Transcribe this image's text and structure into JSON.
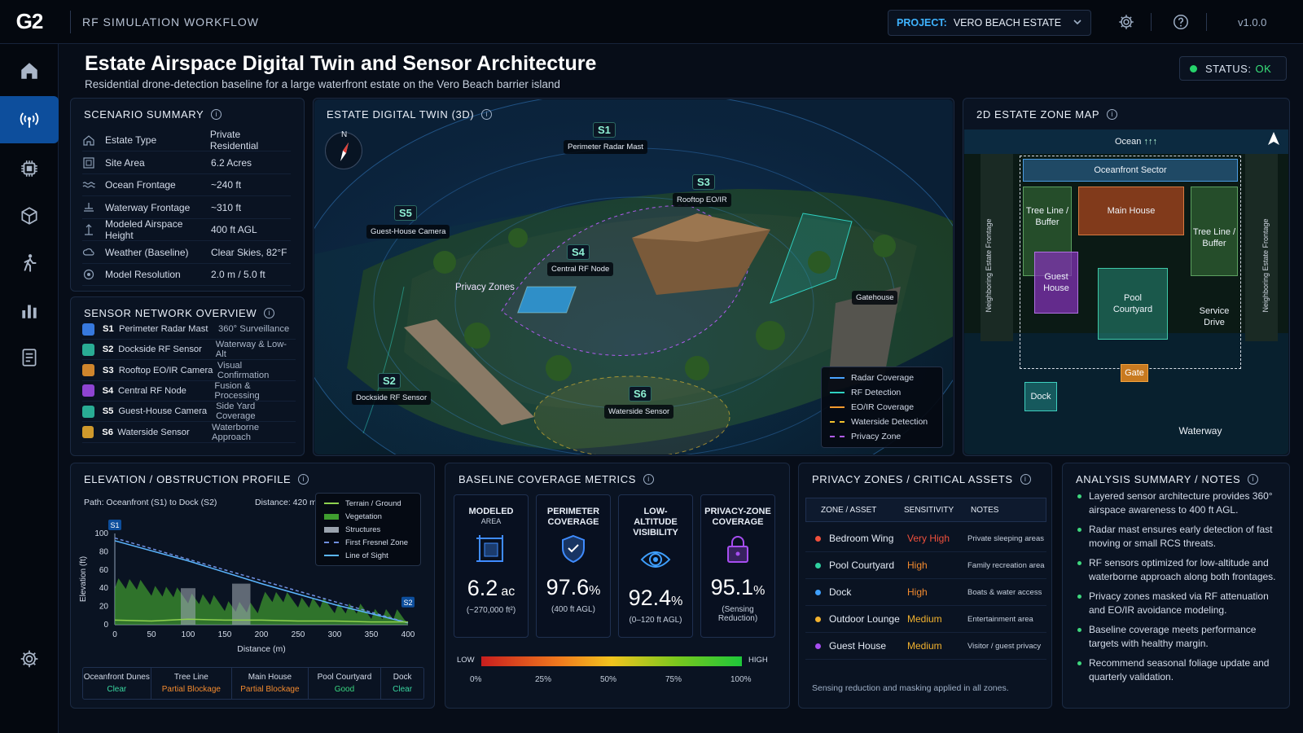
{
  "topbar": {
    "logo": "G2",
    "app_title": "RF SIMULATION WORKFLOW",
    "project_label": "PROJECT:",
    "project_value": "VERO BEACH ESTATE",
    "version": "v1.0.0"
  },
  "header": {
    "title": "Estate Airspace Digital Twin and Sensor Architecture",
    "subtitle": "Residential drone-detection baseline for a large waterfront estate on the Vero Beach barrier island",
    "status_label": "STATUS:",
    "status_value": "OK"
  },
  "scenario": {
    "title": "SCENARIO SUMMARY",
    "rows": [
      {
        "icon": "home-icon",
        "k": "Estate Type",
        "v": "Private Residential"
      },
      {
        "icon": "area-icon",
        "k": "Site Area",
        "v": "6.2 Acres"
      },
      {
        "icon": "waves-icon",
        "k": "Ocean Frontage",
        "v": "~240 ft"
      },
      {
        "icon": "waterway-icon",
        "k": "Waterway Frontage",
        "v": "~310 ft"
      },
      {
        "icon": "height-icon",
        "k": "Modeled Airspace Height",
        "v": "400 ft AGL"
      },
      {
        "icon": "weather-icon",
        "k": "Weather (Baseline)",
        "v": "Clear Skies, 82°F"
      },
      {
        "icon": "resolution-icon",
        "k": "Model Resolution",
        "v": "2.0 m / 5.0 ft"
      }
    ]
  },
  "sensors": {
    "title": "SENSOR NETWORK OVERVIEW",
    "rows": [
      {
        "id": "S1",
        "name": "Perimeter Radar Mast",
        "desc": "360° Surveillance",
        "color": "#3f8cff"
      },
      {
        "id": "S2",
        "name": "Dockside RF Sensor",
        "desc": "Waterway & Low-Alt",
        "color": "#2fc8a8"
      },
      {
        "id": "S3",
        "name": "Rooftop EO/IR Camera",
        "desc": "Visual Confirmation",
        "color": "#f29a2e"
      },
      {
        "id": "S4",
        "name": "Central RF Node",
        "desc": "Fusion & Processing",
        "color": "#a64df0"
      },
      {
        "id": "S5",
        "name": "Guest-House Camera",
        "desc": "Side Yard Coverage",
        "color": "#2fc8a8"
      },
      {
        "id": "S6",
        "name": "Waterside Sensor",
        "desc": "Waterborne Approach",
        "color": "#f2b22e"
      }
    ]
  },
  "twin": {
    "title": "ESTATE DIGITAL TWIN (3D)",
    "compass": "N",
    "labels": [
      {
        "id": "S1",
        "tag": "Perimeter Radar Mast"
      },
      {
        "id": "S3",
        "tag": "Rooftop EO/IR"
      },
      {
        "id": "S5",
        "tag": "Guest-House Camera"
      },
      {
        "id": "S4",
        "tag": "Central RF Node"
      },
      {
        "id": "S2",
        "tag": "Dockside RF Sensor"
      },
      {
        "id": "S6",
        "tag": "Waterside Sensor"
      }
    ],
    "privacy_label": "Privacy Zones",
    "gatehouse": "Gatehouse",
    "legend": [
      {
        "name": "Radar Coverage",
        "color": "#4aa3ff",
        "style": "solid"
      },
      {
        "name": "RF Detection",
        "color": "#2fd0c0",
        "style": "solid"
      },
      {
        "name": "EO/IR Coverage",
        "color": "#f29a2e",
        "style": "solid"
      },
      {
        "name": "Waterside Detection",
        "color": "#f2c22e",
        "style": "dashed"
      },
      {
        "name": "Privacy Zone",
        "color": "#b05cf0",
        "style": "dashed"
      }
    ]
  },
  "map": {
    "title": "2D ESTATE ZONE MAP",
    "north": "N",
    "ocean": "Ocean",
    "oceanfront": "Oceanfront Sector",
    "main_house": "Main House",
    "tree_left": "Tree Line / Buffer",
    "tree_right": "Tree Line / Buffer",
    "guest": "Guest House",
    "pool": "Pool Courtyard",
    "service": "Service Drive",
    "gate": "Gate",
    "dock": "Dock",
    "waterway": "Waterway",
    "neighbor_left": "Neighboring Estate Frontage",
    "neighbor_right": "Neighboring Estate Frontage"
  },
  "profile": {
    "title": "ELEVATION / OBSTRUCTION PROFILE",
    "path": "Path: Oceanfront (S1) to Dock (S2)",
    "distance": "Distance: 420 m",
    "ylabel": "Elevation (ft)",
    "xlabel": "Distance (m)",
    "s1": "S1",
    "s2": "S2",
    "xticks": [
      "0",
      "50",
      "100",
      "150",
      "200",
      "250",
      "300",
      "350",
      "400"
    ],
    "yticks": [
      "0",
      "20",
      "40",
      "60",
      "80",
      "100"
    ],
    "legend": [
      {
        "name": "Terrain / Ground",
        "color": "#8fd14f",
        "type": "line"
      },
      {
        "name": "Vegetation",
        "color": "#3f9d2f",
        "type": "fill"
      },
      {
        "name": "Structures",
        "color": "#9aa3ae",
        "type": "fill"
      },
      {
        "name": "First Fresnel Zone",
        "color": "#6f8fe0",
        "type": "dash"
      },
      {
        "name": "Line of Sight",
        "color": "#5bb6ff",
        "type": "line"
      }
    ],
    "segments": [
      {
        "name": "Oceanfront Dunes",
        "state": "Clear",
        "color": "#39d6a0"
      },
      {
        "name": "Tree Line",
        "state": "Partial Blockage",
        "color": "#f28a2e"
      },
      {
        "name": "Main House",
        "state": "Partial Blockage",
        "color": "#f28a2e"
      },
      {
        "name": "Pool Courtyard",
        "state": "Good",
        "color": "#39d680"
      },
      {
        "name": "Dock",
        "state": "Clear",
        "color": "#39d6a0"
      }
    ]
  },
  "chart_data": {
    "type": "line",
    "title": "ELEVATION / OBSTRUCTION PROFILE",
    "xlabel": "Distance (m)",
    "ylabel": "Elevation (ft)",
    "xlim": [
      0,
      400
    ],
    "ylim": [
      0,
      100
    ],
    "series": [
      {
        "name": "Line of Sight",
        "x": [
          0,
          100,
          200,
          300,
          400
        ],
        "y": [
          92,
          70,
          45,
          22,
          2
        ]
      },
      {
        "name": "First Fresnel Zone",
        "x": [
          0,
          400
        ],
        "y": [
          95,
          2
        ]
      },
      {
        "name": "Terrain / Ground",
        "x": [
          0,
          50,
          100,
          150,
          200,
          250,
          300,
          350,
          400
        ],
        "y": [
          5,
          4,
          6,
          5,
          5,
          4,
          4,
          3,
          3
        ]
      }
    ]
  },
  "metrics": {
    "title": "BASELINE COVERAGE METRICS",
    "items": [
      {
        "t": "MODELED",
        "s": "AREA",
        "v": "6.2",
        "u": "ac",
        "n": "(~270,000 ft²)",
        "icon": "area-grid-icon"
      },
      {
        "t": "PERIMETER COVERAGE",
        "s": "",
        "v": "97.6",
        "u": "%",
        "n": "(400 ft AGL)",
        "icon": "shield-icon"
      },
      {
        "t": "LOW-ALTITUDE VISIBILITY",
        "s": "",
        "v": "92.4",
        "u": "%",
        "n": "(0–120 ft AGL)",
        "icon": "eye-icon"
      },
      {
        "t": "PRIVACY-ZONE COVERAGE",
        "s": "",
        "v": "95.1",
        "u": "%",
        "n": "(Sensing Reduction)",
        "icon": "lock-icon"
      }
    ],
    "scale_low": "LOW",
    "scale_high": "HIGH",
    "scale_ticks": [
      "0%",
      "25%",
      "50%",
      "75%",
      "100%"
    ]
  },
  "privacy": {
    "title": "PRIVACY ZONES / CRITICAL ASSETS",
    "cols": [
      "ZONE / ASSET",
      "SENSITIVITY",
      "NOTES"
    ],
    "rows": [
      {
        "dot": "#f0503c",
        "zone": "Bedroom Wing",
        "sens": "Very High",
        "sens_color": "#f0503c",
        "note": "Private sleeping areas"
      },
      {
        "dot": "#2fd0a0",
        "zone": "Pool Courtyard",
        "sens": "High",
        "sens_color": "#f28a2e",
        "note": "Family recreation area"
      },
      {
        "dot": "#3fa0ff",
        "zone": "Dock",
        "sens": "High",
        "sens_color": "#f28a2e",
        "note": "Boats & water access"
      },
      {
        "dot": "#f2b22e",
        "zone": "Outdoor Lounge",
        "sens": "Medium",
        "sens_color": "#f2b22e",
        "note": "Entertainment area"
      },
      {
        "dot": "#a64df0",
        "zone": "Guest House",
        "sens": "Medium",
        "sens_color": "#f2b22e",
        "note": "Visitor / guest privacy"
      }
    ],
    "foot": "Sensing reduction and masking applied in all zones."
  },
  "analysis": {
    "title": "ANALYSIS SUMMARY / NOTES",
    "items": [
      "Layered sensor architecture provides 360° airspace awareness to 400 ft AGL.",
      "Radar mast ensures early detection of fast moving or small RCS threats.",
      "RF sensors optimized for low-altitude and waterborne approach along both frontages.",
      "Privacy zones masked via RF attenuation and EO/IR avoidance modeling.",
      "Baseline coverage meets performance targets with healthy margin.",
      "Recommend seasonal foliage update and quarterly validation."
    ]
  }
}
